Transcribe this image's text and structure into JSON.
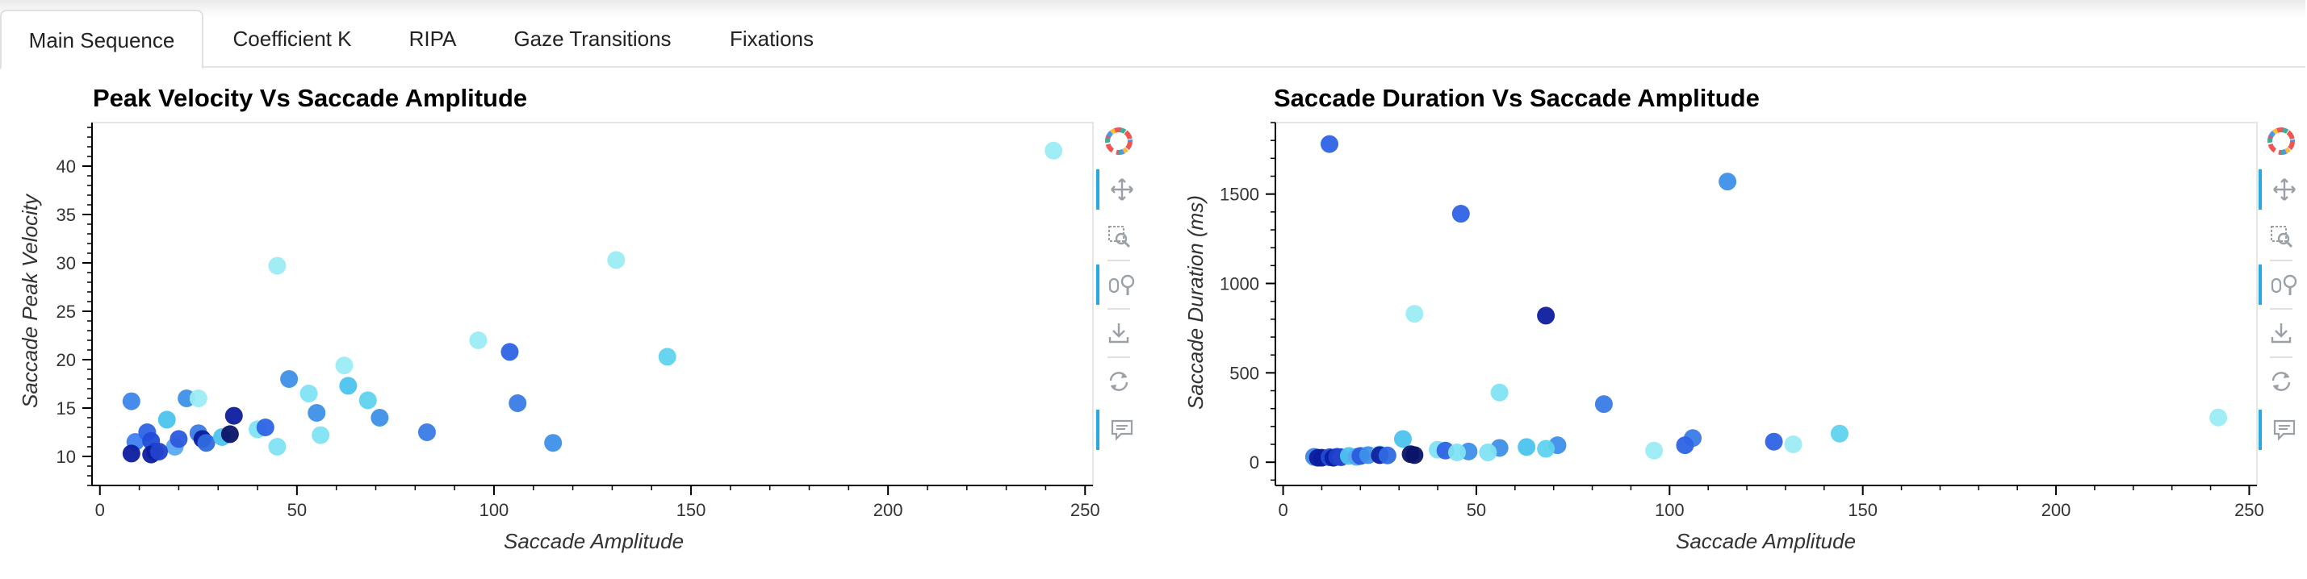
{
  "tabs": [
    {
      "label": "Main Sequence",
      "active": true
    },
    {
      "label": "Coefficient K",
      "active": false
    },
    {
      "label": "RIPA",
      "active": false
    },
    {
      "label": "Gaze Transitions",
      "active": false
    },
    {
      "label": "Fixations",
      "active": false
    }
  ],
  "toolbar_icons": [
    "bokeh-logo-icon",
    "pan-icon",
    "box-zoom-icon",
    "wheel-zoom-icon",
    "save-icon",
    "reset-icon",
    "hover-icon"
  ],
  "chart_data": [
    {
      "type": "scatter",
      "title": "Peak Velocity Vs Saccade Amplitude",
      "xlabel": "Saccade Amplitude",
      "ylabel": "Saccade Peak Velocity",
      "xlim": [
        -2,
        252
      ],
      "ylim": [
        7,
        44.5
      ],
      "xticks": [
        0,
        50,
        100,
        150,
        200,
        250
      ],
      "yticks": [
        10,
        15,
        20,
        25,
        30,
        35,
        40
      ],
      "points": [
        {
          "x": 8,
          "y": 15.7,
          "c": "#3d85ea"
        },
        {
          "x": 9,
          "y": 11.5,
          "c": "#3f7ff0"
        },
        {
          "x": 12,
          "y": 12.5,
          "c": "#2f63e5"
        },
        {
          "x": 13,
          "y": 11.6,
          "c": "#1f4cd8"
        },
        {
          "x": 14,
          "y": 10.5,
          "c": "#1a3fcf"
        },
        {
          "x": 17,
          "y": 13.8,
          "c": "#4cc4ee"
        },
        {
          "x": 19,
          "y": 11.0,
          "c": "#5aa8f0"
        },
        {
          "x": 20,
          "y": 11.8,
          "c": "#2b58de"
        },
        {
          "x": 22,
          "y": 16.0,
          "c": "#3d90e8"
        },
        {
          "x": 25,
          "y": 16.0,
          "c": "#9cecf5"
        },
        {
          "x": 25,
          "y": 12.4,
          "c": "#3b7be6"
        },
        {
          "x": 26,
          "y": 11.8,
          "c": "#0c1e9e"
        },
        {
          "x": 27,
          "y": 11.4,
          "c": "#2f6ae0"
        },
        {
          "x": 31,
          "y": 12.0,
          "c": "#4cc4ee"
        },
        {
          "x": 33,
          "y": 12.3,
          "c": "#0a1568"
        },
        {
          "x": 34,
          "y": 14.2,
          "c": "#0c1e9e"
        },
        {
          "x": 40,
          "y": 12.8,
          "c": "#7fe3f3"
        },
        {
          "x": 42,
          "y": 13.0,
          "c": "#2f63e5"
        },
        {
          "x": 45,
          "y": 29.7,
          "c": "#9cecf5"
        },
        {
          "x": 45,
          "y": 11.0,
          "c": "#7fe3f3"
        },
        {
          "x": 48,
          "y": 18.0,
          "c": "#3d90e8"
        },
        {
          "x": 53,
          "y": 16.5,
          "c": "#7fe3f3"
        },
        {
          "x": 55,
          "y": 14.5,
          "c": "#3d90e8"
        },
        {
          "x": 56,
          "y": 12.2,
          "c": "#7fe3f3"
        },
        {
          "x": 62,
          "y": 19.4,
          "c": "#9cecf5"
        },
        {
          "x": 63,
          "y": 17.3,
          "c": "#4cc4ee"
        },
        {
          "x": 68,
          "y": 15.8,
          "c": "#5fd3ee"
        },
        {
          "x": 71,
          "y": 14.0,
          "c": "#3d90e8"
        },
        {
          "x": 83,
          "y": 12.5,
          "c": "#3b7be6"
        },
        {
          "x": 96,
          "y": 22.0,
          "c": "#9cecf5"
        },
        {
          "x": 104,
          "y": 20.8,
          "c": "#2f63e5"
        },
        {
          "x": 106,
          "y": 15.5,
          "c": "#3b7be6"
        },
        {
          "x": 115,
          "y": 11.4,
          "c": "#3d90e8"
        },
        {
          "x": 131,
          "y": 30.3,
          "c": "#9cecf5"
        },
        {
          "x": 144,
          "y": 20.3,
          "c": "#5fd3ee"
        },
        {
          "x": 242,
          "y": 41.6,
          "c": "#9cecf5"
        },
        {
          "x": 8,
          "y": 10.3,
          "c": "#0c1e9e"
        },
        {
          "x": 13,
          "y": 10.2,
          "c": "#0c1e9e"
        },
        {
          "x": 15,
          "y": 10.5,
          "c": "#2443cc"
        }
      ]
    },
    {
      "type": "scatter",
      "title": "Saccade Duration Vs Saccade Amplitude",
      "xlabel": "Saccade Amplitude",
      "ylabel": "Saccade Duration (ms)",
      "xlim": [
        -2,
        252
      ],
      "ylim": [
        -130,
        1900
      ],
      "xticks": [
        0,
        50,
        100,
        150,
        200,
        250
      ],
      "yticks": [
        0,
        500,
        1000,
        1500
      ],
      "points": [
        {
          "x": 12,
          "y": 1780,
          "c": "#2f63e5"
        },
        {
          "x": 46,
          "y": 1390,
          "c": "#2f63e5"
        },
        {
          "x": 115,
          "y": 1570,
          "c": "#3d90e8"
        },
        {
          "x": 34,
          "y": 830,
          "c": "#9cecf5"
        },
        {
          "x": 68,
          "y": 820,
          "c": "#0c1e9e"
        },
        {
          "x": 56,
          "y": 390,
          "c": "#7fe3f3"
        },
        {
          "x": 83,
          "y": 325,
          "c": "#3b7be6"
        },
        {
          "x": 242,
          "y": 250,
          "c": "#9cecf5"
        },
        {
          "x": 144,
          "y": 160,
          "c": "#5fd3ee"
        },
        {
          "x": 106,
          "y": 135,
          "c": "#3b7be6"
        },
        {
          "x": 127,
          "y": 115,
          "c": "#2f63e5"
        },
        {
          "x": 31,
          "y": 130,
          "c": "#4cc4ee"
        },
        {
          "x": 132,
          "y": 100,
          "c": "#9cecf5"
        },
        {
          "x": 104,
          "y": 95,
          "c": "#2f63e5"
        },
        {
          "x": 71,
          "y": 95,
          "c": "#3d90e8"
        },
        {
          "x": 63,
          "y": 85,
          "c": "#4cc4ee"
        },
        {
          "x": 56,
          "y": 80,
          "c": "#3d90e8"
        },
        {
          "x": 68,
          "y": 75,
          "c": "#5fd3ee"
        },
        {
          "x": 96,
          "y": 65,
          "c": "#9cecf5"
        },
        {
          "x": 40,
          "y": 70,
          "c": "#7fe3f3"
        },
        {
          "x": 42,
          "y": 65,
          "c": "#2f63e5"
        },
        {
          "x": 48,
          "y": 60,
          "c": "#3d90e8"
        },
        {
          "x": 53,
          "y": 55,
          "c": "#7fe3f3"
        },
        {
          "x": 45,
          "y": 55,
          "c": "#7fe3f3"
        },
        {
          "x": 8,
          "y": 30,
          "c": "#3d85ea"
        },
        {
          "x": 9,
          "y": 25,
          "c": "#0c1e9e"
        },
        {
          "x": 10,
          "y": 25,
          "c": "#0c1e9e"
        },
        {
          "x": 12,
          "y": 28,
          "c": "#1f4cd8"
        },
        {
          "x": 13,
          "y": 25,
          "c": "#0c1e9e"
        },
        {
          "x": 14,
          "y": 30,
          "c": "#1a3fcf"
        },
        {
          "x": 15,
          "y": 28,
          "c": "#2443cc"
        },
        {
          "x": 17,
          "y": 35,
          "c": "#4cc4ee"
        },
        {
          "x": 19,
          "y": 30,
          "c": "#5aa8f0"
        },
        {
          "x": 20,
          "y": 35,
          "c": "#2b58de"
        },
        {
          "x": 22,
          "y": 40,
          "c": "#3d90e8"
        },
        {
          "x": 25,
          "y": 45,
          "c": "#9cecf5"
        },
        {
          "x": 25,
          "y": 40,
          "c": "#0c1e9e"
        },
        {
          "x": 27,
          "y": 38,
          "c": "#2f6ae0"
        },
        {
          "x": 33,
          "y": 45,
          "c": "#0a1568"
        },
        {
          "x": 34,
          "y": 40,
          "c": "#0a1568"
        }
      ]
    }
  ]
}
